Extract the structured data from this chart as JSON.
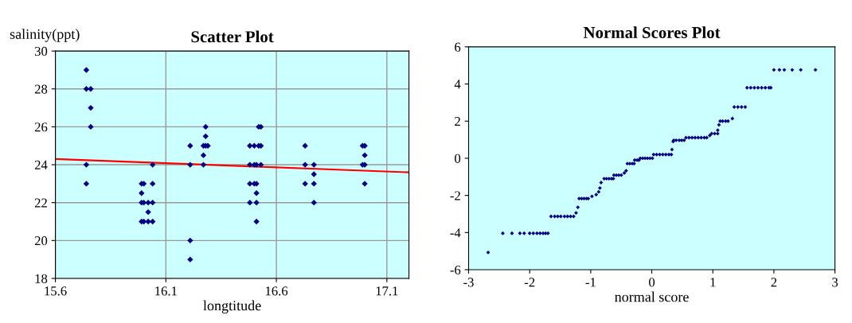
{
  "chart_data": [
    {
      "type": "scatter",
      "title": "Scatter Plot",
      "xlabel": "longtitude",
      "ylabel": "salinity(ppt)",
      "xlim": [
        15.6,
        17.2
      ],
      "xticks": [
        15.6,
        16.1,
        16.6,
        17.1
      ],
      "ylim": [
        18,
        30
      ],
      "yticks": [
        18,
        20,
        22,
        24,
        26,
        28,
        30
      ],
      "grid": true,
      "series": [
        {
          "marker": "diamond",
          "color": "#000080",
          "x": [
            15.74,
            15.74,
            15.76,
            15.76,
            15.76,
            15.74,
            15.74,
            15.99,
            16.0,
            16.04,
            15.99,
            15.99,
            16.0,
            16.02,
            16.04,
            16.02,
            15.99,
            16.0,
            16.02,
            16.04,
            16.04,
            16.21,
            16.21,
            16.21,
            16.21,
            16.28,
            16.28,
            16.27,
            16.28,
            16.29,
            16.27,
            16.27,
            16.52,
            16.53,
            16.48,
            16.5,
            16.52,
            16.53,
            16.48,
            16.5,
            16.51,
            16.53,
            16.48,
            16.5,
            16.51,
            16.51,
            16.48,
            16.51,
            16.51,
            16.73,
            16.73,
            16.77,
            16.77,
            16.73,
            16.77,
            16.77,
            16.99,
            17.0,
            17.0,
            16.99,
            17.0,
            17.0
          ],
          "values": [
            29,
            28,
            28,
            27,
            26,
            24,
            23,
            23,
            23,
            23,
            22.5,
            22,
            22,
            22,
            22,
            21.5,
            21,
            21,
            21,
            21,
            24,
            25,
            24,
            20,
            19,
            26,
            25.5,
            25,
            25,
            25,
            24.5,
            24,
            26,
            26,
            25,
            25,
            25,
            25,
            24,
            24,
            24,
            24,
            23,
            23,
            23,
            22.5,
            22,
            22,
            21,
            25,
            24,
            24,
            23.5,
            23,
            23,
            22,
            25,
            25,
            24.5,
            24,
            24,
            23
          ]
        },
        {
          "type": "line",
          "color": "#ff0000",
          "x": [
            15.6,
            17.2
          ],
          "values": [
            24.3,
            23.6
          ]
        }
      ]
    },
    {
      "type": "scatter",
      "title": "Normal Scores Plot",
      "xlabel": "normal score",
      "xlim": [
        -3,
        3
      ],
      "xticks": [
        -3,
        -2,
        -1,
        0,
        1,
        2,
        3
      ],
      "ylim": [
        -6,
        6
      ],
      "yticks": [
        -6,
        -4,
        -2,
        0,
        2,
        4,
        6
      ],
      "grid": false,
      "series": [
        {
          "marker": "diamond",
          "color": "#000080",
          "x": [
            -2.68,
            -2.44,
            -2.29,
            -2.16,
            -2.09,
            -2.0,
            -1.94,
            -1.88,
            -1.83,
            -1.78,
            -1.74,
            -1.7,
            -1.65,
            -1.59,
            -1.54,
            -1.49,
            -1.43,
            -1.38,
            -1.33,
            -1.28,
            -1.24,
            -1.21,
            -1.19,
            -1.15,
            -1.11,
            -1.07,
            -1.04,
            -0.98,
            -0.91,
            -0.87,
            -0.85,
            -0.83,
            -0.78,
            -0.74,
            -0.7,
            -0.66,
            -0.63,
            -0.62,
            -0.58,
            -0.54,
            -0.5,
            -0.45,
            -0.42,
            -0.4,
            -0.36,
            -0.32,
            -0.29,
            -0.28,
            -0.24,
            -0.21,
            -0.19,
            -0.15,
            -0.11,
            -0.07,
            -0.03,
            0.01,
            0.03,
            0.08,
            0.13,
            0.18,
            0.23,
            0.28,
            0.32,
            0.33,
            0.35,
            0.36,
            0.4,
            0.45,
            0.49,
            0.53,
            0.56,
            0.61,
            0.66,
            0.71,
            0.76,
            0.81,
            0.86,
            0.9,
            0.95,
            0.98,
            1.03,
            1.08,
            1.08,
            1.1,
            1.12,
            1.16,
            1.21,
            1.25,
            1.32,
            1.35,
            1.41,
            1.47,
            1.53,
            1.56,
            1.62,
            1.68,
            1.74,
            1.8,
            1.86,
            1.92,
            1.95,
            2.0,
            2.09,
            2.17,
            2.3,
            2.44,
            2.68
          ],
          "values": [
            -5.07,
            -4.04,
            -4.04,
            -4.04,
            -4.04,
            -4.04,
            -4.04,
            -4.04,
            -4.04,
            -4.04,
            -4.04,
            -4.04,
            -3.13,
            -3.13,
            -3.13,
            -3.13,
            -3.13,
            -3.13,
            -3.13,
            -3.13,
            -2.94,
            -2.64,
            -2.17,
            -2.17,
            -2.17,
            -2.17,
            -2.17,
            -2.05,
            -1.96,
            -1.81,
            -1.6,
            -1.31,
            -1.1,
            -1.1,
            -1.1,
            -1.1,
            -1.1,
            -0.91,
            -0.91,
            -0.91,
            -0.91,
            -0.79,
            -0.67,
            -0.29,
            -0.29,
            -0.29,
            -0.29,
            -0.1,
            -0.1,
            -0.1,
            0.0,
            0.0,
            0.0,
            0.0,
            0.0,
            0.0,
            0.2,
            0.2,
            0.2,
            0.2,
            0.2,
            0.2,
            0.2,
            0.47,
            0.9,
            0.97,
            0.97,
            0.97,
            0.97,
            0.97,
            1.11,
            1.11,
            1.11,
            1.11,
            1.11,
            1.11,
            1.11,
            1.11,
            1.23,
            1.33,
            1.33,
            1.33,
            1.51,
            1.8,
            2.0,
            2.0,
            2.0,
            2.0,
            2.14,
            2.76,
            2.76,
            2.76,
            2.76,
            3.8,
            3.8,
            3.8,
            3.8,
            3.8,
            3.8,
            3.8,
            3.8,
            4.76,
            4.76,
            4.76,
            4.76,
            4.76,
            4.76
          ]
        }
      ]
    }
  ]
}
